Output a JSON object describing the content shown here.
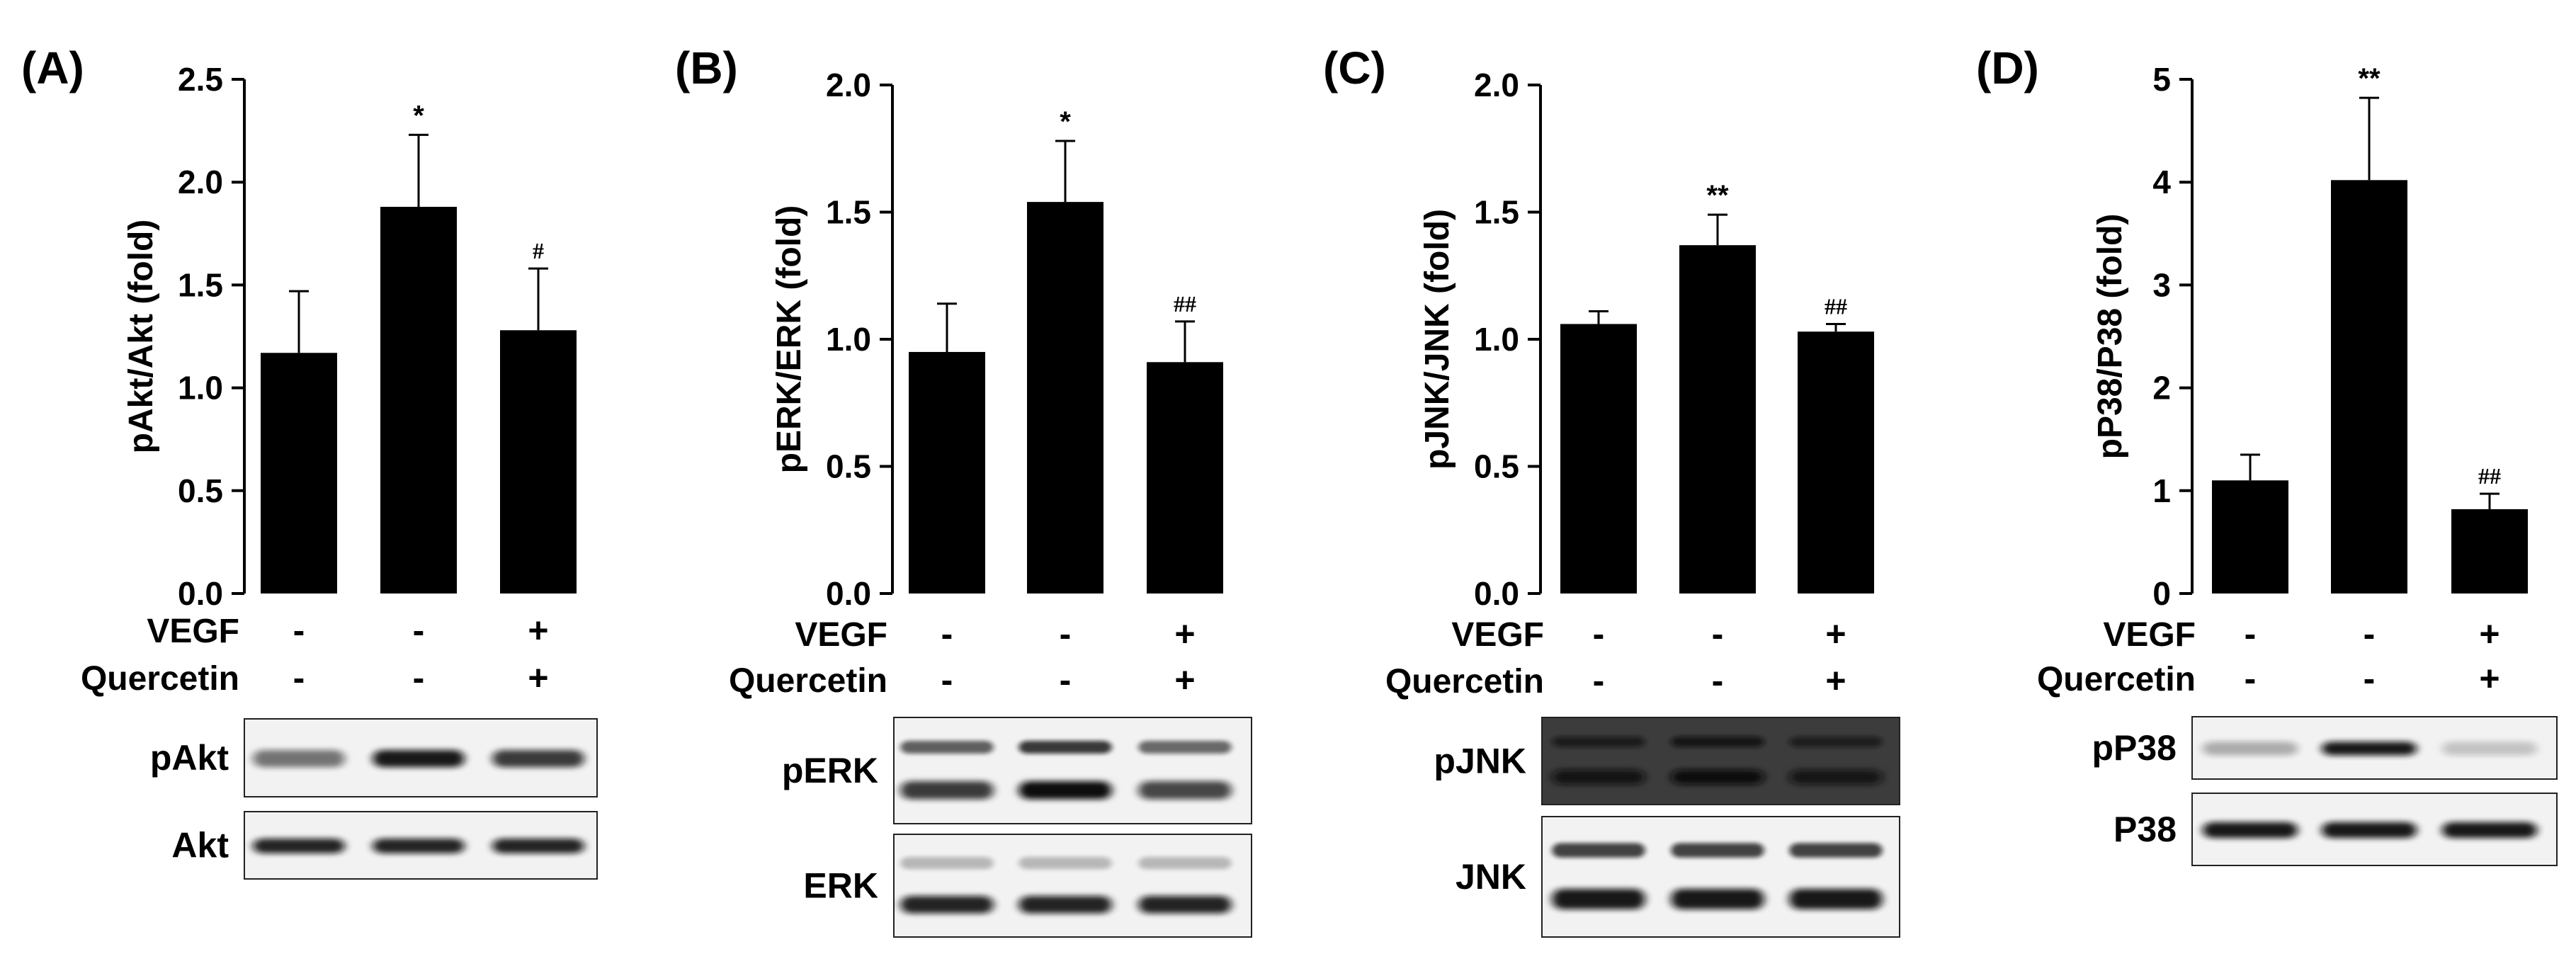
{
  "chart_data": [
    {
      "panel": "(A)",
      "type": "bar",
      "ylabel": "pAkt/Akt (fold)",
      "ylim": [
        0,
        2.5
      ],
      "yticks": [
        "0.0",
        "0.5",
        "1.0",
        "1.5",
        "2.0",
        "2.5"
      ],
      "values": [
        1.17,
        1.88,
        1.28
      ],
      "errors": [
        0.3,
        0.35,
        0.3
      ],
      "significance": [
        "",
        "*",
        "#"
      ],
      "conditions": [
        {
          "name": "VEGF",
          "signs": [
            "-",
            "-",
            "+"
          ]
        },
        {
          "name": "Quercetin",
          "signs": [
            "-",
            "-",
            "+"
          ]
        }
      ],
      "blots": [
        {
          "label": "pAkt",
          "bands": [
            0.55,
            0.95,
            0.8
          ]
        },
        {
          "label": "Akt",
          "bands": [
            0.9,
            0.9,
            0.9
          ]
        }
      ]
    },
    {
      "panel": "(B)",
      "type": "bar",
      "ylabel": "pERK/ERK (fold)",
      "ylim": [
        0,
        2.0
      ],
      "yticks": [
        "0.0",
        "0.5",
        "1.0",
        "1.5",
        "2.0"
      ],
      "values": [
        0.95,
        1.54,
        0.91
      ],
      "errors": [
        0.19,
        0.24,
        0.16
      ],
      "significance": [
        "",
        "*",
        "##"
      ],
      "conditions": [
        {
          "name": "VEGF",
          "signs": [
            "-",
            "-",
            "+"
          ]
        },
        {
          "name": "Quercetin",
          "signs": [
            "-",
            "-",
            "+"
          ]
        }
      ],
      "blots": [
        {
          "label": "pERK",
          "bands": [
            0.75,
            0.95,
            0.7
          ]
        },
        {
          "label": "ERK",
          "bands": [
            0.85,
            0.85,
            0.85
          ]
        }
      ]
    },
    {
      "panel": "(C)",
      "type": "bar",
      "ylabel": "pJNK/JNK (fold)",
      "ylim": [
        0,
        2.0
      ],
      "yticks": [
        "0.0",
        "0.5",
        "1.0",
        "1.5",
        "2.0"
      ],
      "values": [
        1.06,
        1.37,
        1.03
      ],
      "errors": [
        0.05,
        0.12,
        0.03
      ],
      "significance": [
        "",
        "**",
        "##"
      ],
      "conditions": [
        {
          "name": "VEGF",
          "signs": [
            "-",
            "-",
            "+"
          ]
        },
        {
          "name": "Quercetin",
          "signs": [
            "-",
            "-",
            "+"
          ]
        }
      ],
      "blots": [
        {
          "label": "pJNK",
          "bands": [
            0.8,
            0.95,
            0.75
          ]
        },
        {
          "label": "JNK",
          "bands": [
            0.9,
            0.9,
            0.9
          ]
        }
      ]
    },
    {
      "panel": "(D)",
      "type": "bar",
      "ylabel": "pP38/P38 (fold)",
      "ylim": [
        0,
        5
      ],
      "yticks": [
        "0",
        "1",
        "2",
        "3",
        "4",
        "5"
      ],
      "values": [
        1.1,
        4.02,
        0.82
      ],
      "errors": [
        0.25,
        0.8,
        0.15
      ],
      "significance": [
        "",
        "**",
        "##"
      ],
      "conditions": [
        {
          "name": "VEGF",
          "signs": [
            "-",
            "-",
            "+"
          ]
        },
        {
          "name": "Quercetin",
          "signs": [
            "-",
            "-",
            "+"
          ]
        }
      ],
      "blots": [
        {
          "label": "pP38",
          "bands": [
            0.3,
            0.95,
            0.2
          ]
        },
        {
          "label": "P38",
          "bands": [
            0.95,
            0.95,
            0.95
          ]
        }
      ]
    }
  ]
}
